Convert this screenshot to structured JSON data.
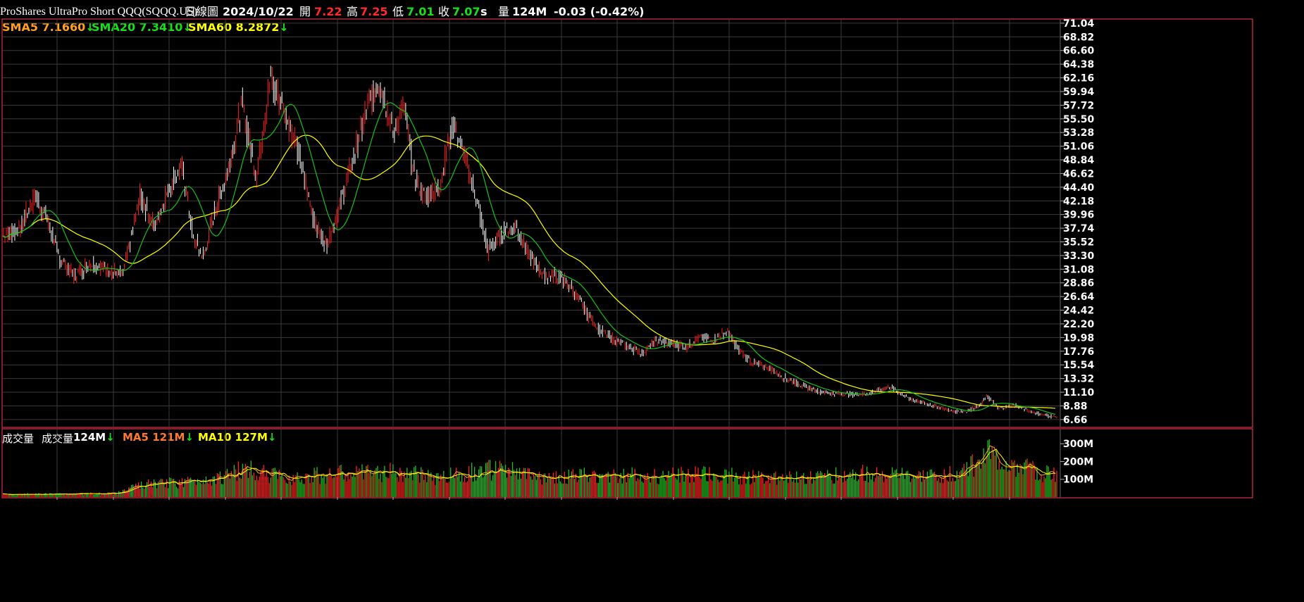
{
  "header": {
    "security_name": "ProShares UltraPro Short QQQ(SQQQ.US)",
    "chart_type": "日線圖",
    "date": "2024/10/22",
    "open_label": "開",
    "open": "7.22",
    "high_label": "高",
    "high": "7.25",
    "low_label": "低",
    "low": "7.01",
    "close_label": "收",
    "close": "7.07",
    "close_flag": "s",
    "volume_label": "量",
    "volume": "124M",
    "change": "-0.03 (-0.42%)"
  },
  "price_panel": {
    "sma5_label": "SMA5 7.1660",
    "sma20_label": "SMA20 7.3410",
    "sma60_label": "SMA60 8.2872",
    "down_arrow": "↓"
  },
  "volume_panel": {
    "title": "成交量",
    "volume_label": "成交量",
    "volume_value": "124M",
    "ma5_label": "MA5 121M",
    "ma10_label": "MA10 127M",
    "down_arrow": "↓"
  },
  "colors": {
    "background": "#000000",
    "grid": "#3a3a3a",
    "border": "#ff3b5c",
    "up": "#ff2020",
    "down": "#ffffff",
    "vol_down": "#20c020",
    "sma5": "#ffa020",
    "sma20": "#18c018",
    "sma60": "#ffff00"
  },
  "chart_data": [
    {
      "type": "candlestick",
      "title": "ProShares UltraPro Short QQQ(SQQQ.US)",
      "y_ticks": [
        "71.04",
        "68.82",
        "66.60",
        "64.38",
        "62.16",
        "59.94",
        "57.72",
        "55.50",
        "53.28",
        "51.06",
        "48.84",
        "46.62",
        "44.40",
        "42.18",
        "39.96",
        "37.74",
        "35.52",
        "33.30",
        "31.08",
        "28.86",
        "26.64",
        "24.42",
        "22.20",
        "19.98",
        "17.76",
        "15.54",
        "13.32",
        "11.10",
        "8.88",
        "6.66"
      ],
      "ylim": [
        5.5,
        71.6
      ],
      "close_series_approx": [
        {
          "i": 0,
          "v": 36.5
        },
        {
          "i": 25,
          "v": 38
        },
        {
          "i": 45,
          "v": 43
        },
        {
          "i": 60,
          "v": 40
        },
        {
          "i": 80,
          "v": 33
        },
        {
          "i": 100,
          "v": 30
        },
        {
          "i": 125,
          "v": 32
        },
        {
          "i": 150,
          "v": 31
        },
        {
          "i": 170,
          "v": 30
        },
        {
          "i": 195,
          "v": 43
        },
        {
          "i": 215,
          "v": 38
        },
        {
          "i": 235,
          "v": 44
        },
        {
          "i": 255,
          "v": 48
        },
        {
          "i": 270,
          "v": 36
        },
        {
          "i": 285,
          "v": 33
        },
        {
          "i": 300,
          "v": 40
        },
        {
          "i": 320,
          "v": 47
        },
        {
          "i": 340,
          "v": 58
        },
        {
          "i": 360,
          "v": 46
        },
        {
          "i": 380,
          "v": 62
        },
        {
          "i": 400,
          "v": 57
        },
        {
          "i": 415,
          "v": 52
        },
        {
          "i": 430,
          "v": 45
        },
        {
          "i": 445,
          "v": 38
        },
        {
          "i": 460,
          "v": 35
        },
        {
          "i": 475,
          "v": 40
        },
        {
          "i": 495,
          "v": 48
        },
        {
          "i": 515,
          "v": 56
        },
        {
          "i": 535,
          "v": 62
        },
        {
          "i": 555,
          "v": 53
        },
        {
          "i": 570,
          "v": 58
        },
        {
          "i": 585,
          "v": 46
        },
        {
          "i": 600,
          "v": 43
        },
        {
          "i": 620,
          "v": 44
        },
        {
          "i": 640,
          "v": 55
        },
        {
          "i": 655,
          "v": 50
        },
        {
          "i": 670,
          "v": 44
        },
        {
          "i": 690,
          "v": 34
        },
        {
          "i": 710,
          "v": 37
        },
        {
          "i": 730,
          "v": 38
        },
        {
          "i": 750,
          "v": 33
        },
        {
          "i": 770,
          "v": 30
        },
        {
          "i": 790,
          "v": 30
        },
        {
          "i": 810,
          "v": 28
        },
        {
          "i": 830,
          "v": 24
        },
        {
          "i": 850,
          "v": 21
        },
        {
          "i": 870,
          "v": 19.5
        },
        {
          "i": 890,
          "v": 18.5
        },
        {
          "i": 910,
          "v": 17.5
        },
        {
          "i": 930,
          "v": 19.5
        },
        {
          "i": 950,
          "v": 19
        },
        {
          "i": 970,
          "v": 18.5
        },
        {
          "i": 990,
          "v": 20
        },
        {
          "i": 1010,
          "v": 19.5
        },
        {
          "i": 1030,
          "v": 21
        },
        {
          "i": 1045,
          "v": 18
        },
        {
          "i": 1065,
          "v": 16
        },
        {
          "i": 1090,
          "v": 15
        },
        {
          "i": 1110,
          "v": 13.5
        },
        {
          "i": 1140,
          "v": 12
        },
        {
          "i": 1170,
          "v": 11
        },
        {
          "i": 1200,
          "v": 10.8
        },
        {
          "i": 1230,
          "v": 10.8
        },
        {
          "i": 1260,
          "v": 12
        },
        {
          "i": 1290,
          "v": 10
        },
        {
          "i": 1320,
          "v": 9
        },
        {
          "i": 1350,
          "v": 8
        },
        {
          "i": 1370,
          "v": 8
        },
        {
          "i": 1390,
          "v": 9
        },
        {
          "i": 1400,
          "v": 10.5
        },
        {
          "i": 1415,
          "v": 8.5
        },
        {
          "i": 1440,
          "v": 9
        },
        {
          "i": 1460,
          "v": 8
        },
        {
          "i": 1480,
          "v": 7.4
        },
        {
          "i": 1495,
          "v": 7.1
        }
      ],
      "sma5_last": 7.166,
      "sma20_last": 7.341,
      "sma60_last": 8.2872
    },
    {
      "type": "bar",
      "title": "成交量",
      "y_ticks": [
        "300M",
        "200M",
        "100M"
      ],
      "ylim": [
        0,
        380
      ],
      "volume_series_approx": [
        {
          "i": 0,
          "v": 15
        },
        {
          "i": 100,
          "v": 18
        },
        {
          "i": 160,
          "v": 20
        },
        {
          "i": 200,
          "v": 70
        },
        {
          "i": 260,
          "v": 85
        },
        {
          "i": 320,
          "v": 120
        },
        {
          "i": 340,
          "v": 160
        },
        {
          "i": 400,
          "v": 110
        },
        {
          "i": 480,
          "v": 130
        },
        {
          "i": 560,
          "v": 140
        },
        {
          "i": 620,
          "v": 110
        },
        {
          "i": 680,
          "v": 150
        },
        {
          "i": 720,
          "v": 150
        },
        {
          "i": 760,
          "v": 110
        },
        {
          "i": 840,
          "v": 120
        },
        {
          "i": 920,
          "v": 120
        },
        {
          "i": 1000,
          "v": 125
        },
        {
          "i": 1080,
          "v": 110
        },
        {
          "i": 1160,
          "v": 115
        },
        {
          "i": 1240,
          "v": 135
        },
        {
          "i": 1300,
          "v": 110
        },
        {
          "i": 1360,
          "v": 130
        },
        {
          "i": 1385,
          "v": 200
        },
        {
          "i": 1395,
          "v": 290
        },
        {
          "i": 1410,
          "v": 200
        },
        {
          "i": 1440,
          "v": 175
        },
        {
          "i": 1470,
          "v": 140
        },
        {
          "i": 1495,
          "v": 124
        }
      ],
      "ma5_last": 121,
      "ma10_last": 127
    }
  ]
}
